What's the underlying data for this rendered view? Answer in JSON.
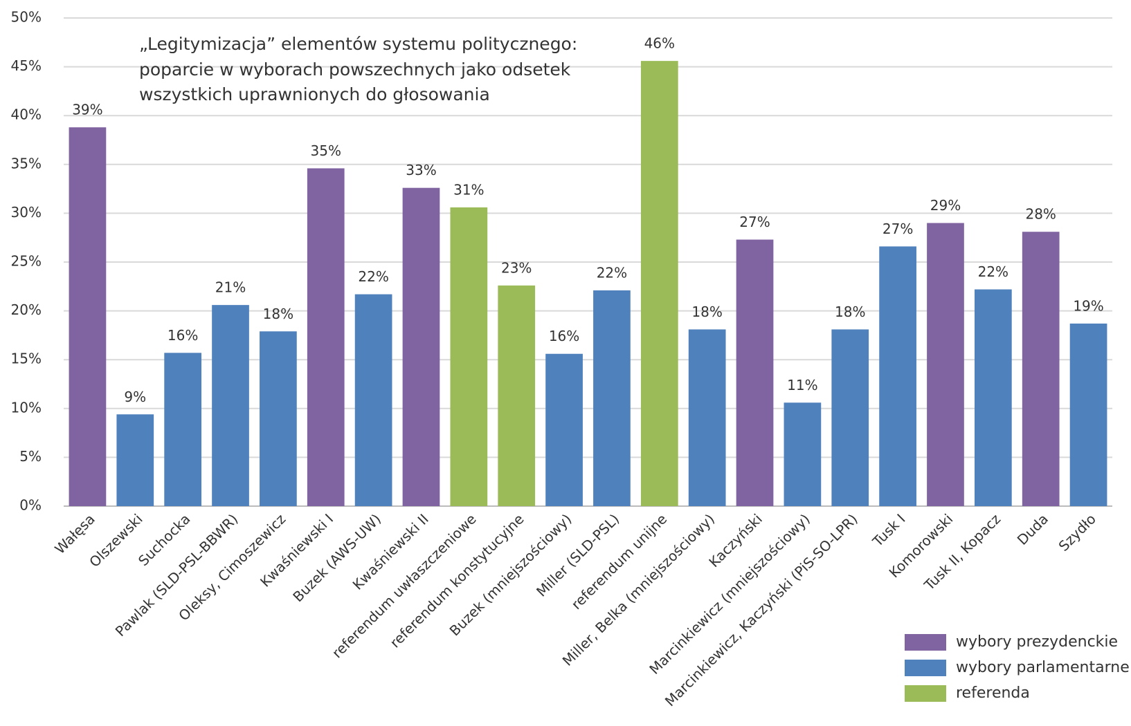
{
  "chart_data": {
    "type": "bar",
    "title": [
      "„Legitymizacja” elementów systemu politycznego:",
      "poparcie w wyborach powszechnych jako odsetek",
      "wszystkich uprawnionych do głosowania"
    ],
    "categories": [
      "Wałęsa",
      "Olszewski",
      "Suchocka",
      "Pawlak (SLD-PSL-BBWR)",
      "Oleksy, Cimoszewicz",
      "Kwaśniewski I",
      "Buzek (AWS-UW)",
      "Kwaśniewski II",
      "referendum uwłaszczeniowe",
      "referendum konstytucyjne",
      "Buzek (mniejszościowy)",
      "Miller (SLD-PSL)",
      "referendum unijne",
      "Miller, Belka (mniejszościowy)",
      "Kaczyński",
      "Marcinkiewicz (mniejszościowy)",
      "Marcinkiewicz, Kaczyński (PiS-SO-LPR)",
      "Tusk I",
      "Komorowski",
      "Tusk II, Kopacz",
      "Duda",
      "Szydło"
    ],
    "series": [
      {
        "name": "wybory prezydenckie",
        "color": "#8064a2",
        "values": [
          38.8,
          null,
          null,
          null,
          null,
          34.6,
          null,
          32.6,
          null,
          null,
          null,
          null,
          null,
          null,
          27.3,
          null,
          null,
          null,
          29.0,
          null,
          28.1,
          null
        ],
        "value_labels": [
          "39%",
          null,
          null,
          null,
          null,
          "35%",
          null,
          "33%",
          null,
          null,
          null,
          null,
          null,
          null,
          "27%",
          null,
          null,
          null,
          "29%",
          null,
          "28%",
          null
        ]
      },
      {
        "name": "wybory parlamentarne",
        "color": "#4f81bd",
        "values": [
          null,
          9.4,
          15.7,
          20.6,
          17.9,
          null,
          21.7,
          null,
          null,
          null,
          15.6,
          22.1,
          null,
          18.1,
          null,
          10.6,
          18.1,
          26.6,
          null,
          22.2,
          null,
          18.7
        ],
        "value_labels": [
          null,
          "9%",
          "16%",
          "21%",
          "18%",
          null,
          "22%",
          null,
          null,
          null,
          "16%",
          "22%",
          null,
          "18%",
          null,
          "11%",
          "18%",
          "27%",
          null,
          "22%",
          null,
          "19%"
        ]
      },
      {
        "name": "referenda",
        "color": "#9bbb59",
        "values": [
          null,
          null,
          null,
          null,
          null,
          null,
          null,
          null,
          30.6,
          22.6,
          null,
          null,
          45.6,
          null,
          null,
          null,
          null,
          null,
          null,
          null,
          null,
          null
        ],
        "value_labels": [
          null,
          null,
          null,
          null,
          null,
          null,
          null,
          null,
          "31%",
          "23%",
          null,
          null,
          "46%",
          null,
          null,
          null,
          null,
          null,
          null,
          null,
          null,
          null
        ]
      }
    ],
    "ylim": [
      0,
      50
    ],
    "yticks": [
      {
        "value": 0,
        "label": "0%"
      },
      {
        "value": 5,
        "label": "5%"
      },
      {
        "value": 10,
        "label": "10%"
      },
      {
        "value": 15,
        "label": "15%"
      },
      {
        "value": 20,
        "label": "20%"
      },
      {
        "value": 25,
        "label": "25%"
      },
      {
        "value": 30,
        "label": "30%"
      },
      {
        "value": 35,
        "label": "35%"
      },
      {
        "value": 40,
        "label": "40%"
      },
      {
        "value": 45,
        "label": "45%"
      },
      {
        "value": 50,
        "label": "50%"
      }
    ],
    "grid": true,
    "legend": "bottom-right"
  }
}
